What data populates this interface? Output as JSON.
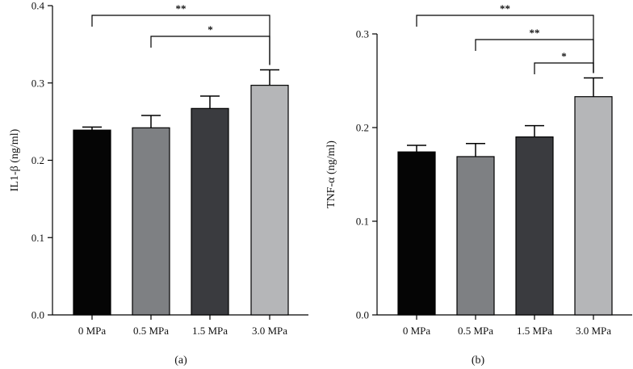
{
  "chart_data": [
    {
      "type": "bar",
      "panel_label": "(a)",
      "ylabel": "IL1-β (ng/ml)",
      "xlabel": "",
      "ylim": [
        0,
        0.4
      ],
      "yticks": [
        0.0,
        0.1,
        0.2,
        0.3,
        0.4
      ],
      "ytick_labels": [
        "0.0",
        "0.1",
        "0.2",
        "0.3",
        "0.4"
      ],
      "categories": [
        "0 MPa",
        "0.5 MPa",
        "1.5 MPa",
        "3.0 MPa"
      ],
      "values": [
        0.239,
        0.242,
        0.267,
        0.297
      ],
      "errors": [
        0.004,
        0.016,
        0.016,
        0.02
      ],
      "colors": [
        "#050505",
        "#7e8083",
        "#3a3b3f",
        "#b5b6b8"
      ],
      "significance": [
        {
          "from": 0,
          "to": 3,
          "label": "**"
        },
        {
          "from": 1,
          "to": 3,
          "label": "*"
        }
      ]
    },
    {
      "type": "bar",
      "panel_label": "(b)",
      "ylabel": "TNF-α (ng/ml)",
      "xlabel": "",
      "ylim": [
        0,
        0.3
      ],
      "yticks": [
        0.0,
        0.1,
        0.2,
        0.3
      ],
      "ytick_labels": [
        "0.0",
        "0.1",
        "0.2",
        "0.3"
      ],
      "categories": [
        "0 MPa",
        "0.5 MPa",
        "1.5 MPa",
        "3.0 MPa"
      ],
      "values": [
        0.174,
        0.169,
        0.19,
        0.233
      ],
      "errors": [
        0.007,
        0.014,
        0.012,
        0.02
      ],
      "colors": [
        "#050505",
        "#7e8083",
        "#3a3b3f",
        "#b5b6b8"
      ],
      "significance": [
        {
          "from": 0,
          "to": 3,
          "label": "**"
        },
        {
          "from": 1,
          "to": 3,
          "label": "**"
        },
        {
          "from": 2,
          "to": 3,
          "label": "*"
        }
      ]
    }
  ]
}
